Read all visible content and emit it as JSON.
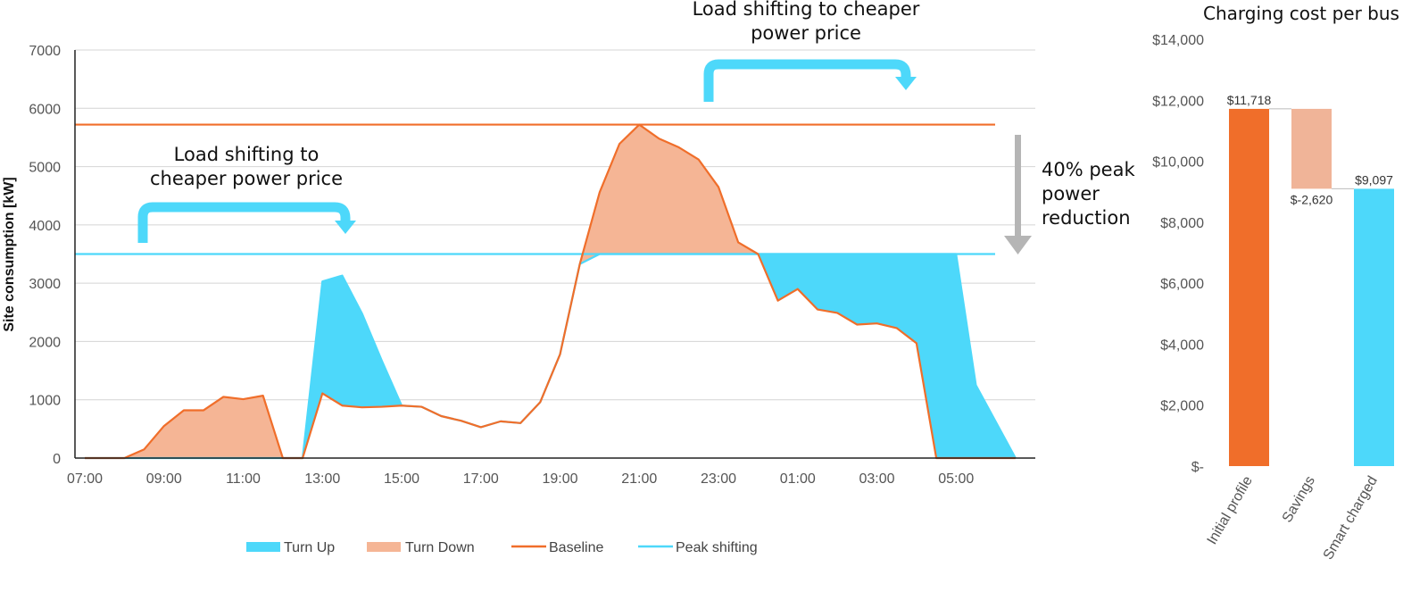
{
  "colors": {
    "turn_up": "#4dd8fa",
    "turn_down": "#f5b595",
    "baseline": "#f06e2a",
    "peak_shifting": "#4dd8fa",
    "grid": "#d4d4d4",
    "reduction_arrow": "#b5b5b5",
    "savings_bar": "#f0b498"
  },
  "annotations": {
    "left_shift": [
      "Load shifting to",
      "cheaper power price"
    ],
    "right_shift": [
      "Load shifting to cheaper",
      "power price"
    ],
    "reduction": [
      "40% peak",
      "power",
      "reduction"
    ]
  },
  "chart_data": [
    {
      "type": "area",
      "title": "",
      "xlabel": "",
      "ylabel": "Site consumption [kW]",
      "ylim": [
        0,
        7000
      ],
      "yticks": [
        "0",
        "1000",
        "2000",
        "3000",
        "4000",
        "5000",
        "6000",
        "7000"
      ],
      "xlim": [
        7,
        31
      ],
      "xticks": [
        {
          "h": 7,
          "label": "07:00"
        },
        {
          "h": 9,
          "label": "09:00"
        },
        {
          "h": 11,
          "label": "11:00"
        },
        {
          "h": 13,
          "label": "13:00"
        },
        {
          "h": 15,
          "label": "15:00"
        },
        {
          "h": 17,
          "label": "17:00"
        },
        {
          "h": 19,
          "label": "19:00"
        },
        {
          "h": 21,
          "label": "21:00"
        },
        {
          "h": 23,
          "label": "23:00"
        },
        {
          "h": 25,
          "label": "01:00"
        },
        {
          "h": 27,
          "label": "03:00"
        },
        {
          "h": 29,
          "label": "05:00"
        }
      ],
      "grid": true,
      "legend_position": "bottom",
      "legend": [
        "Turn Up",
        "Turn Down",
        "Baseline",
        "Peak shifting"
      ],
      "series": [
        {
          "name": "Baseline",
          "x": [
            7,
            8,
            8.5,
            9,
            9.5,
            10,
            10.5,
            11,
            11.5,
            12,
            12.5,
            13,
            13.5,
            14,
            14.5,
            15,
            15.5,
            16,
            16.5,
            17,
            17.5,
            18,
            18.5,
            19,
            19.5,
            20,
            20.5,
            21,
            21.5,
            22,
            22.5,
            23,
            23.5,
            24,
            24.5,
            25,
            25.5,
            26,
            26.5,
            27,
            27.5,
            28,
            28.5,
            29,
            29.5,
            30.5
          ],
          "y": [
            0,
            0,
            150,
            550,
            820,
            820,
            1050,
            1010,
            1070,
            0,
            0,
            1110,
            900,
            870,
            880,
            900,
            880,
            720,
            640,
            530,
            630,
            600,
            960,
            1780,
            3330,
            4560,
            5390,
            5720,
            5480,
            5330,
            5120,
            4650,
            3700,
            3500,
            2700,
            2900,
            2550,
            2490,
            2290,
            2310,
            2230,
            1970,
            0,
            0,
            0,
            0
          ]
        },
        {
          "name": "Peak shifting",
          "x": [
            7,
            12.5,
            13,
            13.5,
            14,
            14.5,
            15,
            15.5,
            16,
            16.5,
            17,
            17.5,
            18,
            18.5,
            19,
            19.5,
            20,
            20.5,
            21,
            21.5,
            22,
            22.5,
            23,
            23.5,
            24,
            24.5,
            25,
            25.5,
            26,
            26.5,
            27,
            27.5,
            28,
            28.5,
            29,
            29.5,
            30.5
          ],
          "y": [
            0,
            0,
            3030,
            3130,
            2480,
            1670,
            900,
            880,
            720,
            640,
            530,
            630,
            600,
            960,
            1780,
            3330,
            3500,
            3500,
            3500,
            3500,
            3500,
            3500,
            3500,
            3500,
            3500,
            3500,
            3500,
            3500,
            3500,
            3500,
            3500,
            3500,
            3500,
            3500,
            3500,
            1250,
            0
          ]
        }
      ],
      "reference_lines": [
        {
          "name": "Baseline peak",
          "y": 5720
        },
        {
          "name": "Shifted peak",
          "y": 3500
        }
      ]
    },
    {
      "type": "bar",
      "subtype": "waterfall",
      "title": "Charging cost per bus",
      "xlabel": "",
      "ylabel": "",
      "ylim": [
        0,
        14000
      ],
      "yticks": [
        "$-",
        "$2,000",
        "$4,000",
        "$6,000",
        "$8,000",
        "$10,000",
        "$12,000",
        "$14,000"
      ],
      "categories": [
        "Initial profile",
        "Savings",
        "Smart charged"
      ],
      "values": [
        11718,
        -2620,
        9097
      ],
      "data_labels": [
        "$11,718",
        "$-2,620",
        "$9,097"
      ]
    }
  ]
}
